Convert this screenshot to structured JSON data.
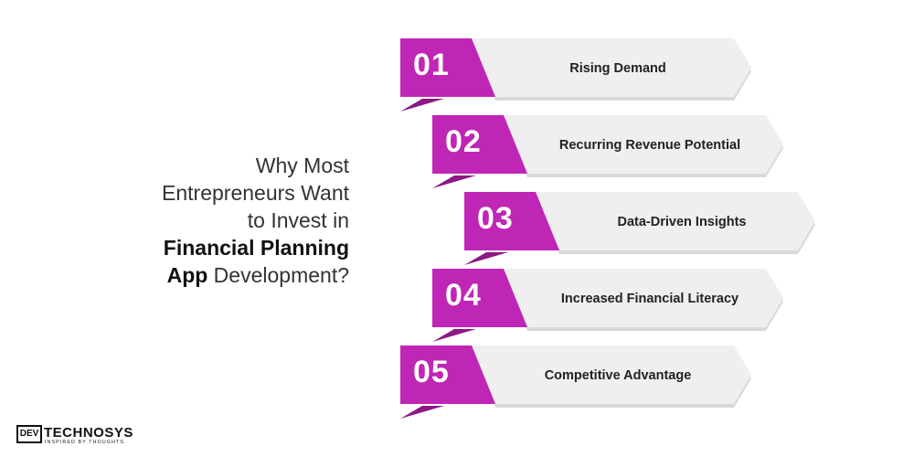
{
  "heading": {
    "line1": "Why Most",
    "line2": "Entrepreneurs Want",
    "line3": "to Invest in",
    "line4_bold": "Financial Planning",
    "line5_bold": "App",
    "line5_rest": " Development?"
  },
  "colors": {
    "accent": "#C026B5",
    "accent_shadow": "#8B1883",
    "card": "#EFEFEF",
    "card_shadow": "#D9D9D9"
  },
  "items": [
    {
      "number": "01",
      "label": "Rising Demand"
    },
    {
      "number": "02",
      "label": "Recurring Revenue Potential"
    },
    {
      "number": "03",
      "label": "Data-Driven Insights"
    },
    {
      "number": "04",
      "label": "Increased Financial Literacy"
    },
    {
      "number": "05",
      "label": "Competitive Advantage"
    }
  ],
  "logo": {
    "box": "DEV",
    "name": "TECHNOSYS",
    "tagline": "INSPIRED BY THOUGHTS"
  }
}
